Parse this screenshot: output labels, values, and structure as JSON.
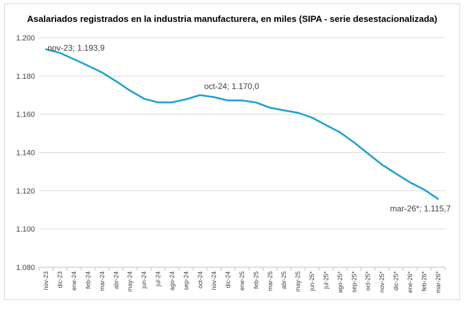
{
  "chart_data": {
    "type": "line",
    "title": "Asalariados registrados en la industria manufacturera, en miles (SIPA - serie desestacionalizada)",
    "xlabel": "",
    "ylabel": "",
    "ylim": [
      1080,
      1200
    ],
    "yticks": [
      1080,
      1100,
      1120,
      1140,
      1160,
      1180,
      1200
    ],
    "ytick_labels": [
      "1.080",
      "1.100",
      "1.120",
      "1.140",
      "1.160",
      "1.180",
      "1.200"
    ],
    "grid": "horizontal",
    "legend": "none",
    "line_color": "#1ba1d1",
    "x": [
      "nov-23",
      "dic-23",
      "ene-24",
      "feb-24",
      "mar-24",
      "abr-24",
      "may-24",
      "jun-24",
      "jul-24",
      "ago-24",
      "sep-24",
      "oct-24",
      "nov-24",
      "dic-24",
      "ene-25",
      "feb-25",
      "mar-25",
      "abr-25",
      "may-25",
      "jun-25*",
      "jul-25*",
      "ago-25*",
      "sep-25*",
      "oct-25*",
      "nov-25*",
      "dic-25*",
      "ene-26*",
      "feb-26*",
      "mar-26*"
    ],
    "series": [
      {
        "values": [
          1193.9,
          1192.0,
          1188.7,
          1185.3,
          1181.8,
          1177.2,
          1172.3,
          1168.1,
          1166.2,
          1166.2,
          1167.8,
          1170.0,
          1168.9,
          1167.2,
          1167.2,
          1166.1,
          1163.4,
          1162.0,
          1160.7,
          1158.2,
          1154.3,
          1150.5,
          1145.2,
          1139.4,
          1133.6,
          1128.9,
          1124.3,
          1120.6,
          1115.7
        ]
      }
    ],
    "annotations": [
      {
        "index": 0,
        "text": "nov-23; 1.193,9"
      },
      {
        "index": 11,
        "text": "oct-24; 1.170,0"
      },
      {
        "index": 28,
        "text": "mar-26*; 1.115,7"
      }
    ]
  }
}
